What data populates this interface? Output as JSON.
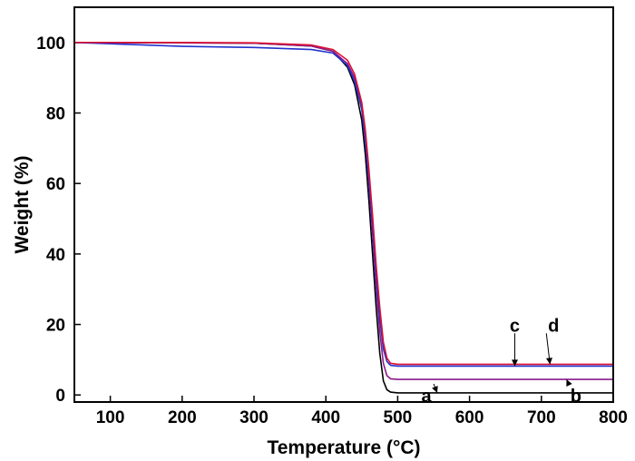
{
  "chart_data": {
    "type": "line",
    "xlabel": "Temperature (°C)",
    "ylabel": "Weight (%)",
    "xlim": [
      50,
      800
    ],
    "ylim": [
      -2,
      110
    ],
    "xticks": [
      100,
      200,
      300,
      400,
      500,
      600,
      700,
      800
    ],
    "yticks": [
      0,
      20,
      40,
      60,
      80,
      100
    ],
    "grid": false,
    "legend": "none",
    "series": [
      {
        "name": "a",
        "color": "#000000",
        "x": [
          50,
          200,
          300,
          380,
          410,
          430,
          440,
          450,
          455,
          460,
          465,
          470,
          475,
          480,
          485,
          490,
          500,
          800
        ],
        "y": [
          100,
          99.9,
          99.8,
          99,
          97.5,
          93,
          88,
          78,
          68,
          55,
          40,
          25,
          12,
          4,
          1.5,
          0.8,
          0.6,
          0.6
        ]
      },
      {
        "name": "b",
        "color": "#8b1a8b",
        "x": [
          50,
          200,
          300,
          380,
          410,
          430,
          440,
          450,
          455,
          460,
          465,
          470,
          475,
          480,
          485,
          490,
          500,
          800
        ],
        "y": [
          100,
          99.9,
          99.8,
          99,
          97.5,
          94,
          90,
          82,
          73,
          60,
          46,
          31,
          18,
          9,
          5.5,
          4.6,
          4.4,
          4.4
        ]
      },
      {
        "name": "c",
        "color": "#2233cc",
        "x": [
          50,
          200,
          300,
          380,
          410,
          430,
          440,
          450,
          455,
          460,
          465,
          470,
          475,
          480,
          485,
          490,
          500,
          800
        ],
        "y": [
          100,
          98.9,
          98.6,
          98,
          97,
          93.5,
          89,
          81,
          72,
          61,
          48,
          34,
          22,
          13,
          9.5,
          8.4,
          8.2,
          8.2
        ]
      },
      {
        "name": "d",
        "color": "#dd1133",
        "x": [
          50,
          200,
          300,
          380,
          410,
          430,
          440,
          450,
          455,
          460,
          465,
          470,
          475,
          480,
          485,
          490,
          500,
          800
        ],
        "y": [
          100,
          100,
          99.9,
          99.3,
          98,
          95,
          91,
          83,
          75,
          64,
          51,
          37,
          25,
          15,
          10.5,
          9,
          8.7,
          8.7
        ]
      }
    ],
    "annotations": [
      {
        "text": "a",
        "x": 540,
        "y": -2,
        "arrow_to_x": 555,
        "arrow_to_y": 0.6
      },
      {
        "text": "b",
        "x": 748,
        "y": -2,
        "arrow_to_x": 735,
        "arrow_to_y": 4.4
      },
      {
        "text": "c",
        "x": 663,
        "y": 18,
        "arrow_to_x": 663,
        "arrow_to_y": 8.2
      },
      {
        "text": "d",
        "x": 717,
        "y": 18,
        "arrow_to_x": 712,
        "arrow_to_y": 8.7
      }
    ]
  }
}
